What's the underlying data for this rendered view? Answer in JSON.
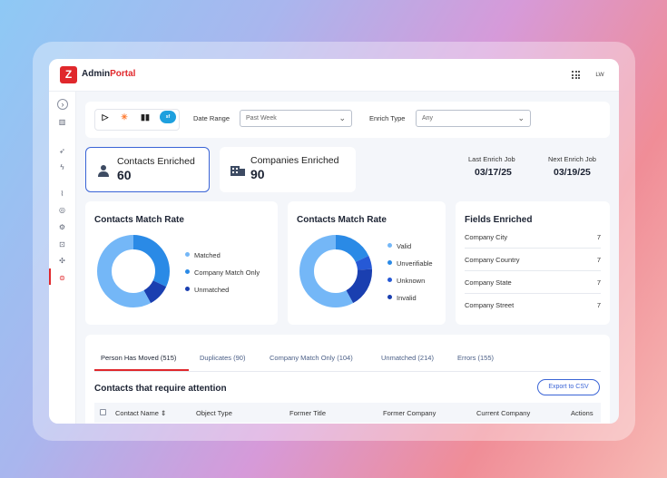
{
  "app": {
    "brand_prefix": "Admin",
    "brand_accent": "Portal",
    "logo_letter": "Z",
    "user_initials": "LW",
    "accent_color": "#e0282c",
    "primary_color": "#3a64d6"
  },
  "sidebar": {
    "icons": [
      "chevron-right-icon",
      "building-icon",
      "rocket-icon",
      "bolt-icon",
      "chart-icon",
      "target-icon",
      "gear-icon",
      "lock-icon",
      "puzzle-icon",
      "database-icon"
    ]
  },
  "filters": {
    "integrations": [
      "zoominfo-icon",
      "hubspot-icon",
      "marketo-icon",
      "salesforce-icon"
    ],
    "date_range_label": "Date Range",
    "date_range_value": "Past Week",
    "enrich_type_label": "Enrich Type",
    "enrich_type_value": "Any"
  },
  "stats": {
    "contacts": {
      "label": "Contacts Enriched",
      "value": "60"
    },
    "companies": {
      "label": "Companies Enriched",
      "value": "90"
    },
    "last_job": {
      "label": "Last Enrich Job",
      "value": "03/17/25"
    },
    "next_job": {
      "label": "Next Enrich Job",
      "value": "03/19/25"
    }
  },
  "panel1": {
    "title": "Contacts Match Rate",
    "legend": [
      {
        "label": "Matched",
        "color": "#74b7f7",
        "value": 0.58
      },
      {
        "label": "Company Match Only",
        "color": "#2a8ae6",
        "value": 0.32
      },
      {
        "label": "Unmatched",
        "color": "#1a3fb0",
        "value": 0.1
      }
    ]
  },
  "panel2": {
    "title": "Contacts Match Rate",
    "legend": [
      {
        "label": "Valid",
        "color": "#74b7f7",
        "value": 0.58
      },
      {
        "label": "Unverifiable",
        "color": "#2a8ae6",
        "value": 0.18
      },
      {
        "label": "Unknown",
        "color": "#2659d6",
        "value": 0.06
      },
      {
        "label": "Invalid",
        "color": "#1a3fb0",
        "value": 0.18
      }
    ]
  },
  "fields_enriched": {
    "title": "Fields Enriched",
    "rows": [
      {
        "label": "Company City",
        "count": "7"
      },
      {
        "label": "Company Country",
        "count": "7"
      },
      {
        "label": "Company State",
        "count": "7"
      },
      {
        "label": "Company Street",
        "count": "7"
      }
    ]
  },
  "table": {
    "tabs": [
      "Person Has Moved (515)",
      "Duplicates (90)",
      "Company Match Only (104)",
      "Unmatched (214)",
      "Errors (155)"
    ],
    "section_title": "Contacts that require attention",
    "export_label": "Export to CSV",
    "columns": [
      "Contact Name",
      "Object Type",
      "Former Title",
      "Former Company",
      "Current Company",
      "Actions"
    ],
    "sort_glyph": "⇕"
  }
}
